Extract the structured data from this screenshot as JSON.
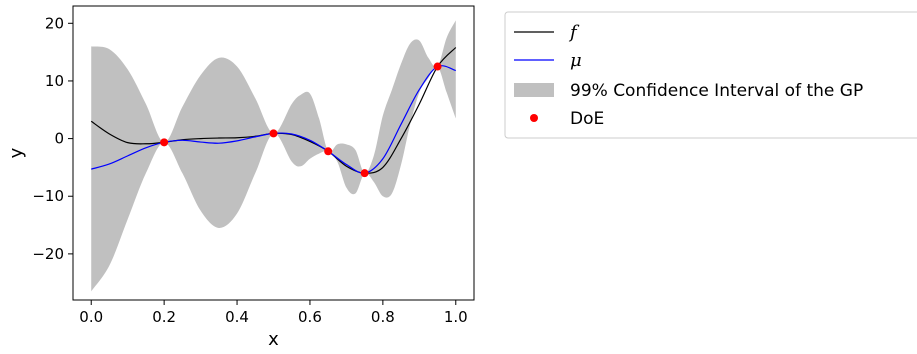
{
  "chart_data": {
    "type": "line",
    "xlabel": "x",
    "ylabel": "y",
    "xlim": [
      -0.05,
      1.05
    ],
    "ylim": [
      -28,
      23
    ],
    "xticks": [
      0.0,
      0.2,
      0.4,
      0.6,
      0.8,
      1.0
    ],
    "xtick_labels": [
      "0.0",
      "0.2",
      "0.4",
      "0.6",
      "0.8",
      "1.0"
    ],
    "yticks": [
      -20,
      -10,
      0,
      10,
      20
    ],
    "ytick_labels": [
      "−20",
      "−10",
      "0",
      "10",
      "20"
    ],
    "grid": false,
    "legend_position": "outside-right",
    "legend": [
      {
        "label": "f",
        "kind": "line",
        "color": "#000000"
      },
      {
        "label": "μ",
        "kind": "line",
        "color": "#0000ff"
      },
      {
        "label": "99% Confidence Interval of the GP",
        "kind": "patch",
        "color": "#c0c0c0"
      },
      {
        "label": "DoE",
        "kind": "marker",
        "color": "#ff0000"
      }
    ],
    "series": [
      {
        "name": "f",
        "color": "#000000",
        "x": [
          0.0,
          0.05,
          0.1,
          0.15,
          0.2,
          0.25,
          0.3,
          0.35,
          0.4,
          0.45,
          0.5,
          0.55,
          0.6,
          0.65,
          0.7,
          0.75,
          0.8,
          0.85,
          0.9,
          0.95,
          1.0
        ],
        "y": [
          3.0,
          0.8,
          -0.7,
          -0.9,
          -0.65,
          -0.2,
          0.0,
          0.1,
          0.15,
          0.4,
          0.9,
          0.7,
          -0.5,
          -2.2,
          -4.8,
          -6.0,
          -5.0,
          0.0,
          6.0,
          12.5,
          15.8
        ]
      },
      {
        "name": "μ",
        "color": "#0000ff",
        "x": [
          0.0,
          0.05,
          0.1,
          0.15,
          0.2,
          0.25,
          0.3,
          0.35,
          0.4,
          0.45,
          0.5,
          0.55,
          0.6,
          0.65,
          0.7,
          0.75,
          0.8,
          0.85,
          0.9,
          0.95,
          1.0
        ],
        "y": [
          -5.3,
          -4.4,
          -3.0,
          -1.6,
          -0.65,
          -0.3,
          -0.6,
          -0.8,
          -0.4,
          0.3,
          0.9,
          0.8,
          -0.3,
          -2.2,
          -4.5,
          -6.0,
          -3.5,
          2.5,
          8.5,
          12.5,
          11.8
        ]
      }
    ],
    "confidence_band": {
      "name": "99% Confidence Interval of the GP",
      "color": "#c0c0c0",
      "x": [
        0.0,
        0.05,
        0.1,
        0.15,
        0.2,
        0.25,
        0.3,
        0.35,
        0.4,
        0.45,
        0.5,
        0.55,
        0.575,
        0.6,
        0.625,
        0.65,
        0.675,
        0.7,
        0.725,
        0.75,
        0.775,
        0.8,
        0.825,
        0.85,
        0.875,
        0.9,
        0.925,
        0.95,
        0.975,
        1.0
      ],
      "lower": [
        -26.5,
        -22.0,
        -14.0,
        -6.0,
        -0.65,
        -6.0,
        -12.5,
        -15.5,
        -13.0,
        -6.0,
        0.9,
        -4.0,
        -4.8,
        -3.5,
        -2.6,
        -2.2,
        -4.0,
        -8.5,
        -9.5,
        -6.0,
        -7.5,
        -10.0,
        -9.5,
        -4.5,
        2.5,
        8.0,
        10.5,
        12.5,
        8.0,
        3.5
      ],
      "upper": [
        16.0,
        15.5,
        12.0,
        6.0,
        -0.65,
        5.5,
        11.0,
        14.0,
        12.5,
        7.0,
        0.9,
        6.0,
        7.6,
        7.8,
        3.5,
        -2.2,
        -1.0,
        -1.0,
        -2.0,
        -6.0,
        -3.0,
        4.0,
        8.5,
        13.0,
        16.5,
        17.0,
        14.0,
        12.5,
        17.5,
        20.5
      ]
    },
    "doe": {
      "name": "DoE",
      "color": "#ff0000",
      "x": [
        0.2,
        0.5,
        0.65,
        0.75,
        0.95
      ],
      "y": [
        -0.65,
        0.9,
        -2.2,
        -6.0,
        12.5
      ]
    }
  }
}
